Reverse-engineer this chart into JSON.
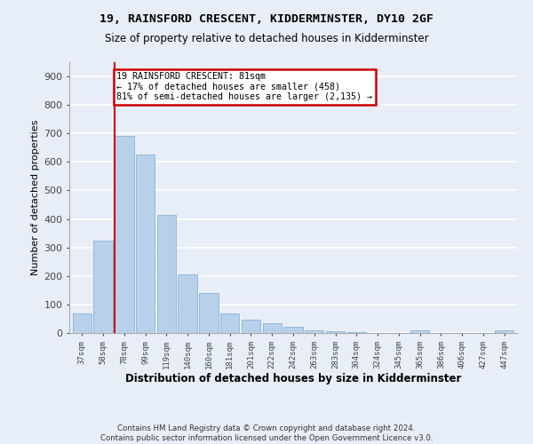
{
  "title": "19, RAINSFORD CRESCENT, KIDDERMINSTER, DY10 2GF",
  "subtitle": "Size of property relative to detached houses in Kidderminster",
  "xlabel": "Distribution of detached houses by size in Kidderminster",
  "ylabel": "Number of detached properties",
  "bar_labels": [
    "37sqm",
    "58sqm",
    "78sqm",
    "99sqm",
    "119sqm",
    "140sqm",
    "160sqm",
    "181sqm",
    "201sqm",
    "222sqm",
    "242sqm",
    "263sqm",
    "283sqm",
    "304sqm",
    "324sqm",
    "345sqm",
    "365sqm",
    "386sqm",
    "406sqm",
    "427sqm",
    "447sqm"
  ],
  "bar_heights": [
    70,
    325,
    690,
    625,
    413,
    207,
    140,
    68,
    46,
    35,
    22,
    10,
    5,
    2,
    0,
    0,
    8,
    0,
    0,
    0,
    8
  ],
  "bar_color": "#b8d0ea",
  "bar_edge_color": "#8ab4d4",
  "vline_x_index": 2,
  "vline_color": "#cc0000",
  "annotation_text": "19 RAINSFORD CRESCENT: 81sqm\n← 17% of detached houses are smaller (458)\n81% of semi-detached houses are larger (2,135) →",
  "annotation_box_color": "#ffffff",
  "annotation_box_edge": "#cc0000",
  "ylim": [
    0,
    950
  ],
  "yticks": [
    0,
    100,
    200,
    300,
    400,
    500,
    600,
    700,
    800,
    900
  ],
  "footer": "Contains HM Land Registry data © Crown copyright and database right 2024.\nContains public sector information licensed under the Open Government Licence v3.0.",
  "bg_color": "#e8eef8",
  "plot_bg_color": "#e8eef8",
  "grid_color": "#ffffff"
}
